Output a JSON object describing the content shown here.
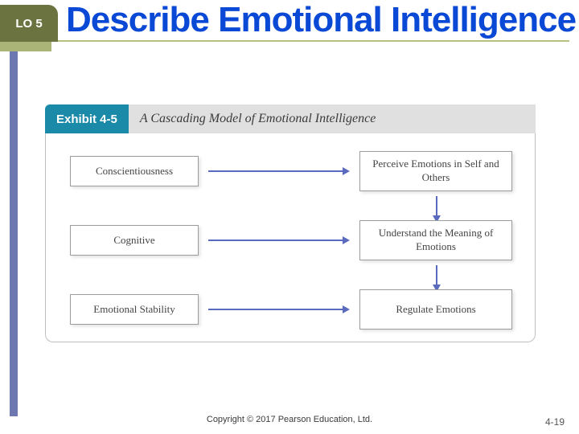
{
  "lo_tab": "LO 5",
  "title": "Describe Emotional Intelligence",
  "exhibit": {
    "number_label": "Exhibit 4-5",
    "subtitle": "A Cascading Model of Emotional Intelligence",
    "left_boxes": [
      "Conscientiousness",
      "Cognitive",
      "Emotional Stability"
    ],
    "right_boxes": [
      "Perceive Emotions in Self and Others",
      "Understand the Meaning of Emotions",
      "Regulate Emotions"
    ]
  },
  "colors": {
    "title_color": "#0a49d6",
    "lo_bg": "#6b7441",
    "stripe": "#6d78b0",
    "ex_num_bg": "#1a8aa8",
    "ex_title_bg": "#dfe0df",
    "arrow_color": "#5a6bbf",
    "underline": "#b6c181"
  },
  "copyright": "Copyright © 2017 Pearson Education, Ltd.",
  "page_number": "4-19"
}
